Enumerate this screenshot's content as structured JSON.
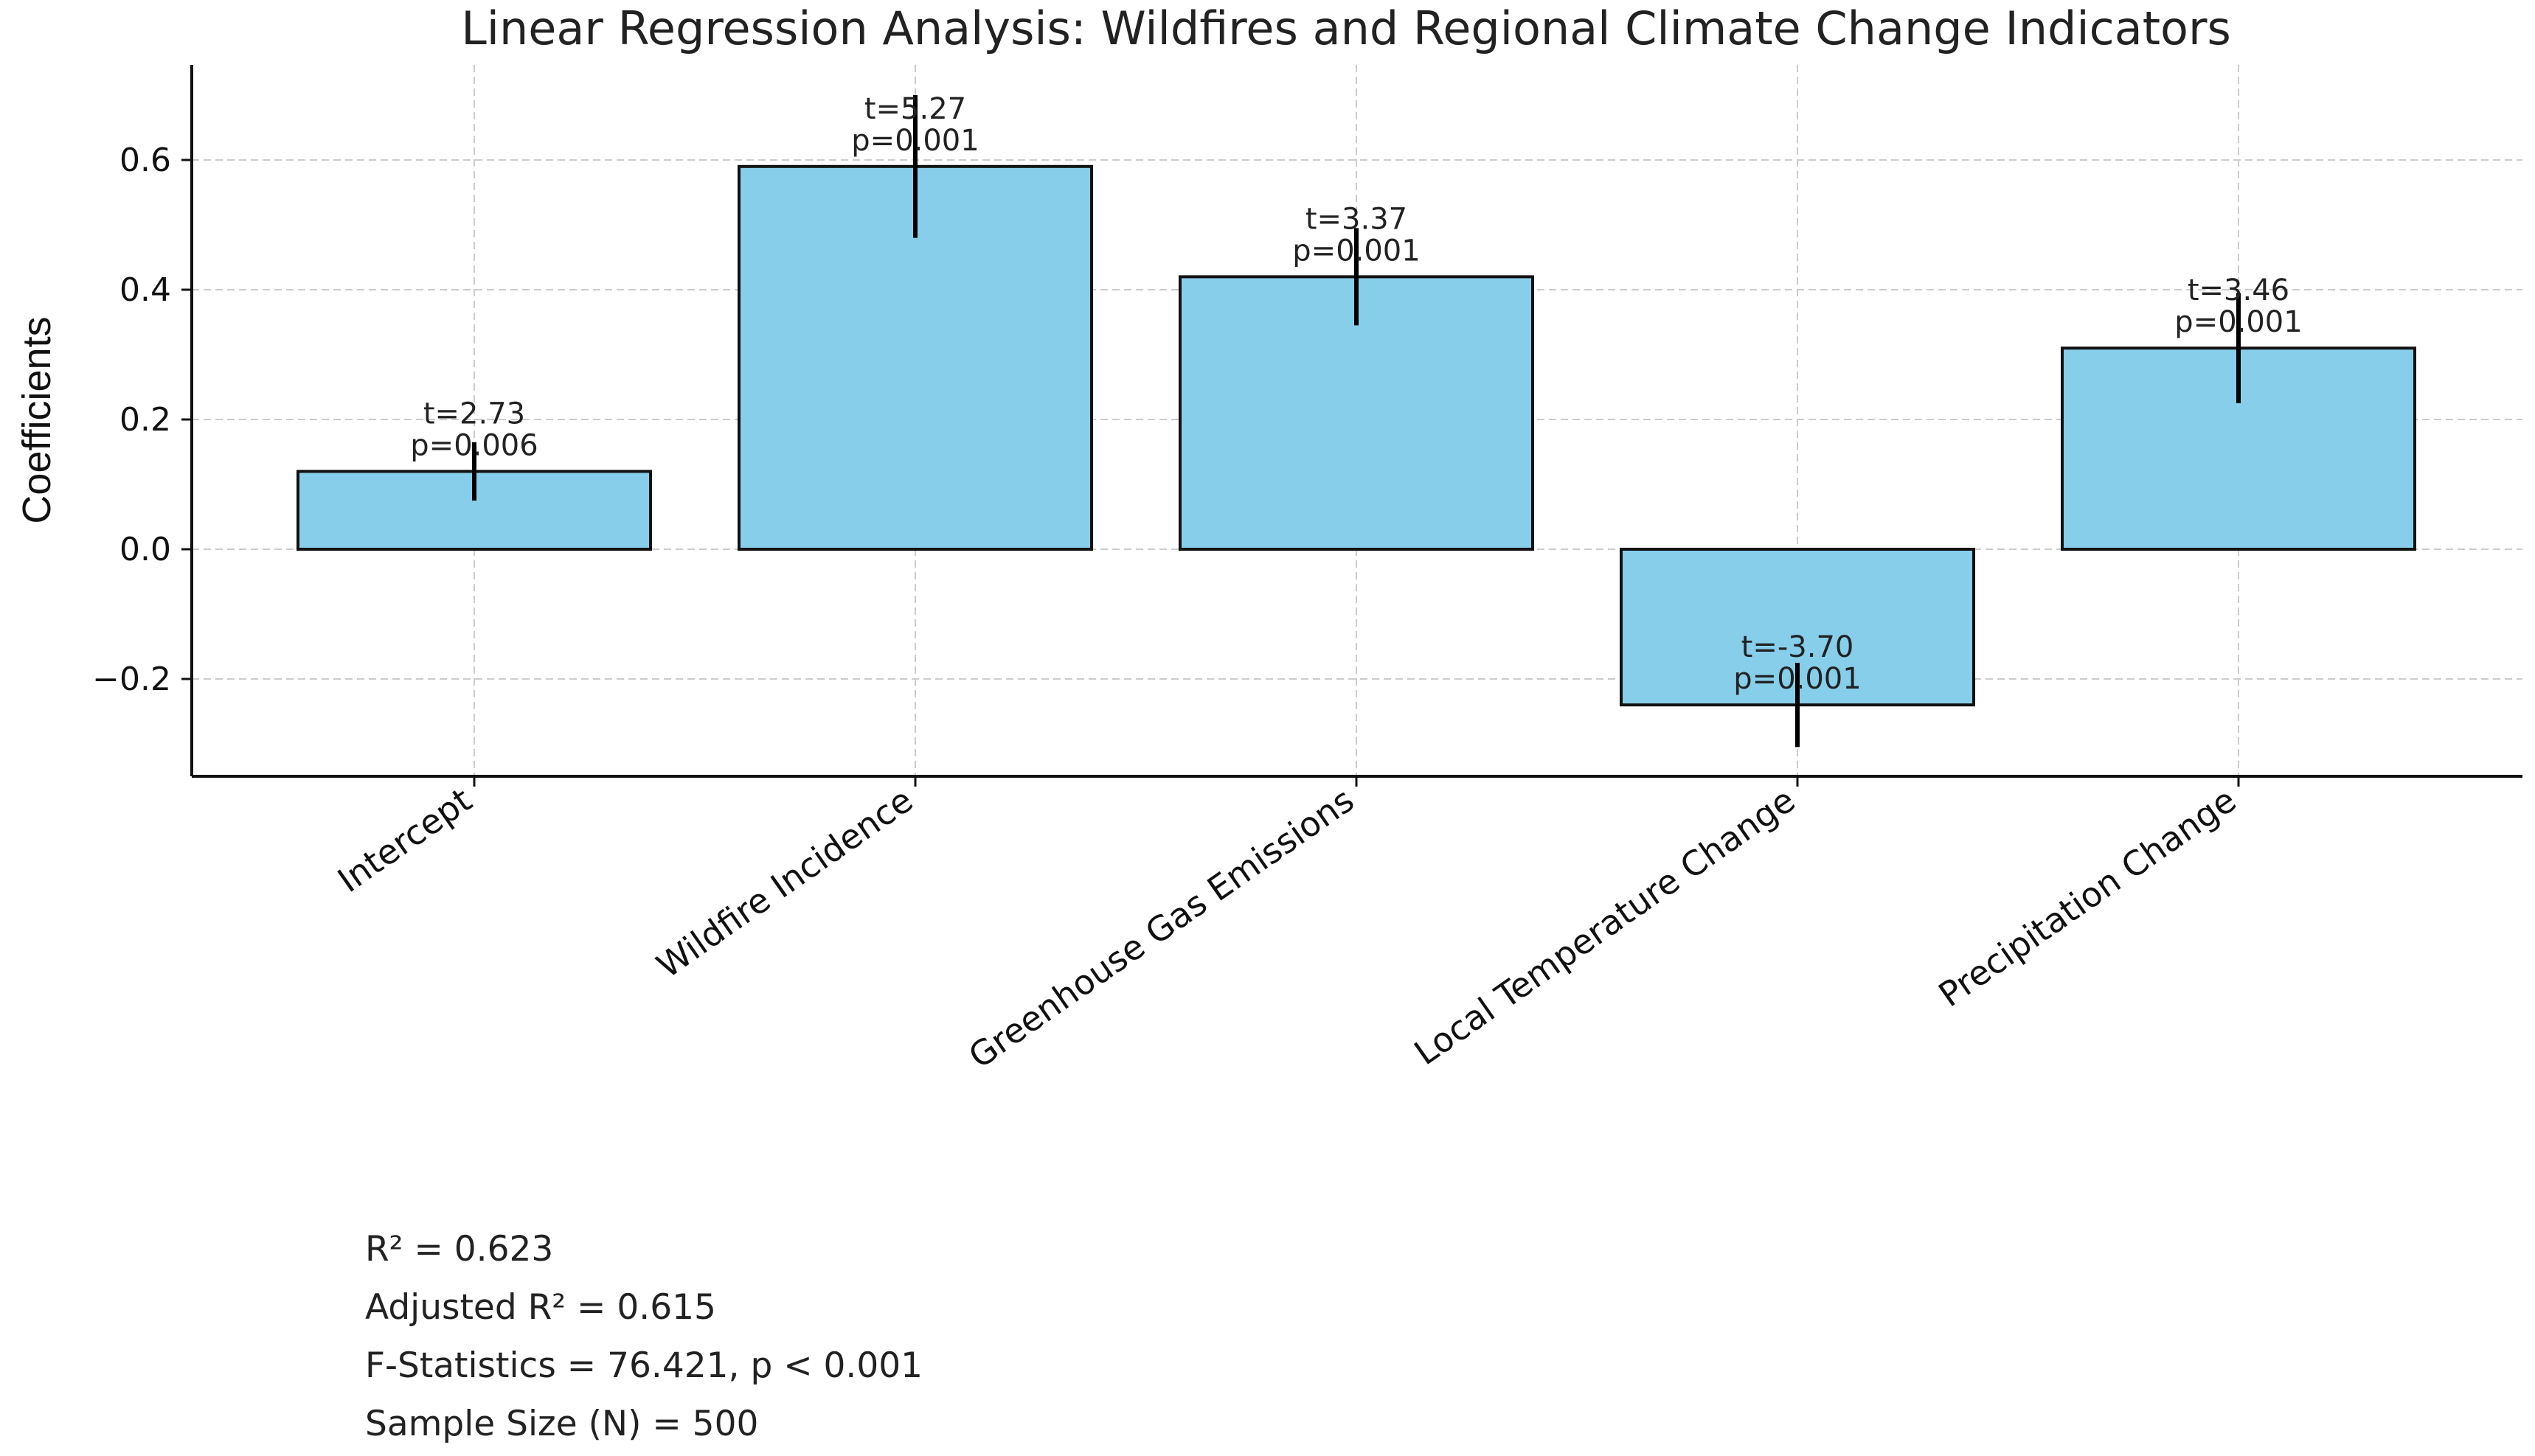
{
  "chart_data": {
    "type": "bar",
    "title": "Linear Regression Analysis: Wildfires and Regional Climate Change Indicators",
    "xlabel": "",
    "ylabel": "Coefficients",
    "ylim": [
      -0.35,
      0.75
    ],
    "yticks": [
      -0.2,
      0.0,
      0.2,
      0.4,
      0.6
    ],
    "ytick_labels": [
      "−0.2",
      "0.0",
      "0.2",
      "0.4",
      "0.6"
    ],
    "grid": true,
    "categories": [
      "Intercept",
      "Wildfire Incidence",
      "Greenhouse Gas Emissions",
      "Local Temperature Change",
      "Precipitation Change"
    ],
    "values": [
      0.12,
      0.59,
      0.42,
      -0.24,
      0.31
    ],
    "errors": [
      0.045,
      0.11,
      0.075,
      0.065,
      0.085
    ],
    "annotations": [
      {
        "t": "t=2.73",
        "p": "p=0.006"
      },
      {
        "t": "t=5.27",
        "p": "p=0.001"
      },
      {
        "t": "t=3.37",
        "p": "p=0.001"
      },
      {
        "t": "t=-3.70",
        "p": "p=0.001"
      },
      {
        "t": "t=3.46",
        "p": "p=0.001"
      }
    ],
    "colors": {
      "bar": "#87ceeb",
      "edge": "#111111",
      "error": "#000000",
      "grid": "#cccccc"
    }
  },
  "stats": {
    "r2": "R² = 0.623",
    "adj_r2": "Adjusted R² = 0.615",
    "f_stat": "F-Statistics = 76.421, p < 0.001",
    "n": "Sample Size (N) = 500"
  }
}
